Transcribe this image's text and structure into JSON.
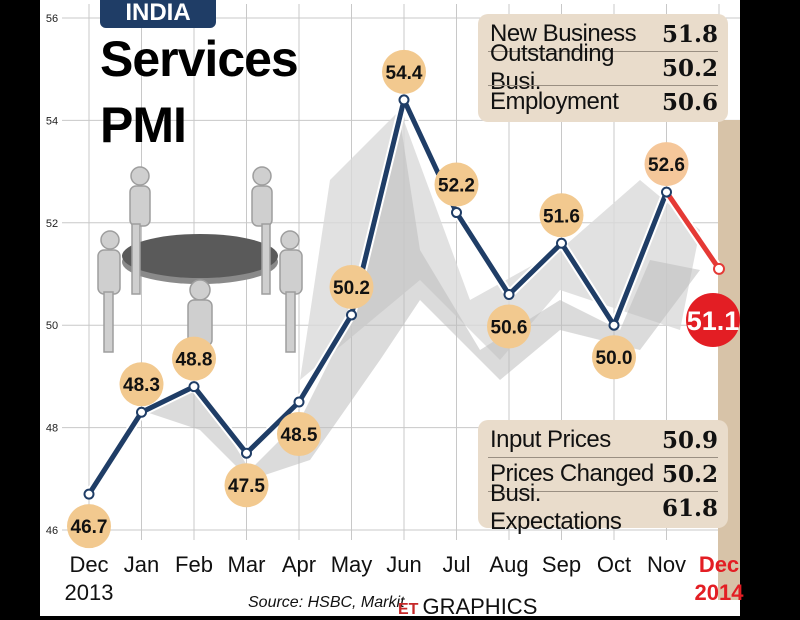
{
  "badge": "INDIA",
  "title_line1": "Services",
  "title_line2": "PMI",
  "top_panel": [
    {
      "label": "New Business",
      "value": "51.8"
    },
    {
      "label": "Outstanding Busi.",
      "value": "50.2"
    },
    {
      "label": "Employment",
      "value": "50.6"
    }
  ],
  "bottom_panel": [
    {
      "label": "Input Prices",
      "value": "50.9"
    },
    {
      "label": "Prices Changed",
      "value": "50.2"
    },
    {
      "label": "Busi. Expectations",
      "value": "61.8"
    }
  ],
  "source": "Source: HSBC, Markit",
  "brand_mark": "ET",
  "brand_text": "GRAPHICS",
  "colors": {
    "line": "#1f3d66",
    "highlight_line": "#e53935",
    "label_bubble": "#f2c98f",
    "latest_bubble": "#e31e24",
    "panel": "#e9dccb",
    "background": "#ffffff"
  },
  "chart_data": {
    "type": "line",
    "categories": [
      "Dec",
      "Jan",
      "Feb",
      "Mar",
      "Apr",
      "May",
      "Jun",
      "Jul",
      "Aug",
      "Sep",
      "Oct",
      "Nov",
      "Dec"
    ],
    "year_labels": {
      "0": "2013",
      "12": "2014"
    },
    "values": [
      46.7,
      48.3,
      48.8,
      47.5,
      48.5,
      50.2,
      54.4,
      52.2,
      50.6,
      51.6,
      50.0,
      52.6,
      51.1
    ],
    "data_labels": [
      "46.7",
      "48.3",
      "48.8",
      "47.5",
      "48.5",
      "50.2",
      "54.4",
      "52.2",
      "50.6",
      "51.6",
      "50.0",
      "52.6",
      "51.1"
    ],
    "yticks": [
      "46",
      "48",
      "50",
      "52",
      "54",
      "56"
    ],
    "ylim": [
      46,
      56
    ],
    "grid": true,
    "highlighted_last_segment": true
  }
}
